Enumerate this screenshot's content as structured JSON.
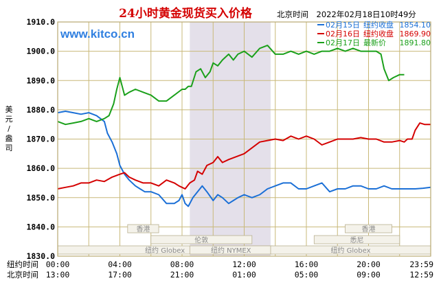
{
  "header": {
    "title": "24小时黄金现货买入价格",
    "timestamp": "北京时间　2022年02月18日10时49分",
    "watermark": "www.kitco.cn"
  },
  "y_axis_label": [
    "美",
    "元",
    "/",
    "盎",
    "司"
  ],
  "legend": [
    {
      "date": "02月15日",
      "label": "纽约收盘",
      "value": "1854.10",
      "color": "#1a6fd6"
    },
    {
      "date": "02月16日",
      "label": "纽约收盘",
      "value": "1869.90",
      "color": "#d40000"
    },
    {
      "date": "02月17日",
      "label": "最新价",
      "value": "1891.80",
      "color": "#1aa01a"
    }
  ],
  "sessions": [
    {
      "name": "香港",
      "row": 0
    },
    {
      "name": "香港",
      "row": 0
    },
    {
      "name": "伦敦",
      "row": 1
    },
    {
      "name": "悉尼",
      "row": 1
    },
    {
      "name": "纽约 Globex",
      "row": 2
    },
    {
      "name": "纽约 NYMEX",
      "row": 2
    },
    {
      "name": "纽约 Globex",
      "row": 2
    }
  ],
  "x_axis_rows": [
    {
      "label": "纽约时间",
      "ticks": [
        "00:00",
        "04:00",
        "08:00",
        "12:00",
        "16:00",
        "20:00",
        "23:59"
      ]
    },
    {
      "label": "北京时间",
      "ticks": [
        "13:00",
        "17:00",
        "21:00",
        "01:00",
        "05:00",
        "09:00",
        "12:59"
      ]
    }
  ],
  "chart_data": {
    "type": "line",
    "title": "24小时黄金现货买入价格",
    "ylabel": "美元/盎司",
    "xlabel": "纽约时间",
    "x_unit": "hours (New York time)",
    "xlim": [
      0,
      24
    ],
    "ylim": [
      1830,
      1910
    ],
    "yticks": [
      1830.0,
      1840.0,
      1850.0,
      1860.0,
      1870.0,
      1880.0,
      1890.0,
      1900.0,
      1910.0
    ],
    "grid": true,
    "highlight_band_hours": [
      8.5,
      13.7
    ],
    "series": [
      {
        "name": "02月15日",
        "color": "#1a6fd6",
        "x": [
          0,
          0.5,
          1,
          1.5,
          2,
          2.5,
          3,
          3.2,
          3.5,
          3.8,
          4,
          4.3,
          4.6,
          5,
          5.3,
          5.6,
          6,
          6.5,
          7,
          7.5,
          7.8,
          8,
          8.2,
          8.4,
          8.7,
          9,
          9.3,
          9.6,
          10,
          10.3,
          10.6,
          11,
          11.3,
          11.6,
          12,
          12.5,
          13,
          13.5,
          14,
          14.5,
          15,
          15.5,
          16,
          16.5,
          17,
          17.5,
          18,
          18.5,
          19,
          19.5,
          20,
          20.5,
          21,
          21.5,
          22,
          22.5,
          23,
          23.5,
          24
        ],
        "y": [
          1879,
          1879.5,
          1879,
          1878.5,
          1879,
          1878,
          1876,
          1872,
          1869,
          1865,
          1861,
          1858,
          1856,
          1854,
          1853,
          1852,
          1852,
          1851,
          1848,
          1848,
          1849,
          1851,
          1848,
          1847,
          1850,
          1852,
          1854,
          1852,
          1849,
          1851,
          1850,
          1848,
          1849,
          1850,
          1851,
          1850,
          1851,
          1853,
          1854,
          1855,
          1855,
          1853,
          1853,
          1854,
          1855,
          1852,
          1853,
          1853,
          1854,
          1854,
          1853,
          1853,
          1854,
          1853,
          1853,
          1853,
          1853,
          1853.2,
          1853.5
        ]
      },
      {
        "name": "02月16日",
        "color": "#d40000",
        "x": [
          0,
          0.5,
          1,
          1.5,
          2,
          2.5,
          3,
          3.5,
          4,
          4.3,
          4.6,
          5,
          5.5,
          6,
          6.5,
          7,
          7.5,
          7.8,
          8.2,
          8.5,
          8.8,
          9,
          9.3,
          9.6,
          10,
          10.3,
          10.6,
          11,
          11.5,
          12,
          12.5,
          13,
          13.5,
          14,
          14.5,
          15,
          15.5,
          16,
          16.5,
          17,
          17.5,
          18,
          18.5,
          19,
          19.5,
          20,
          20.5,
          21,
          21.5,
          22,
          22.3,
          22.5,
          22.8,
          23,
          23.3,
          23.6,
          24
        ],
        "y": [
          1853,
          1853.5,
          1854,
          1855,
          1855,
          1856,
          1855.5,
          1857,
          1858,
          1858.5,
          1857,
          1856,
          1855,
          1855,
          1854,
          1856,
          1855,
          1854,
          1853,
          1855,
          1856,
          1859,
          1858,
          1861,
          1862,
          1864,
          1862,
          1863,
          1864,
          1865,
          1867,
          1869,
          1869.5,
          1870,
          1869.5,
          1871,
          1870,
          1871,
          1870,
          1868,
          1869,
          1870,
          1870,
          1870,
          1870.5,
          1870,
          1870,
          1869,
          1869,
          1869.5,
          1869,
          1870,
          1870,
          1873,
          1875.5,
          1875,
          1875
        ]
      },
      {
        "name": "02月17日",
        "color": "#1aa01a",
        "x": [
          0,
          0.5,
          1,
          1.5,
          2,
          2.5,
          3,
          3.3,
          3.6,
          3.8,
          4,
          4.3,
          4.6,
          5,
          5.5,
          6,
          6.5,
          7,
          7.5,
          8,
          8.2,
          8.4,
          8.6,
          8.9,
          9.2,
          9.5,
          9.8,
          10,
          10.3,
          10.6,
          11,
          11.3,
          11.6,
          12,
          12.5,
          13,
          13.5,
          14,
          14.5,
          15,
          15.5,
          16,
          16.5,
          17,
          17.5,
          18,
          18.5,
          19,
          19.5,
          20,
          20.5,
          20.8,
          21,
          21.3,
          21.6,
          22,
          22.3
        ],
        "y": [
          1876,
          1875,
          1875.5,
          1876,
          1877,
          1876,
          1877,
          1878,
          1882,
          1887,
          1891,
          1885,
          1886,
          1887,
          1886,
          1885,
          1883,
          1883,
          1885,
          1887,
          1887,
          1888,
          1888,
          1893,
          1894,
          1891,
          1893,
          1896,
          1895,
          1897,
          1899,
          1897,
          1899,
          1900,
          1898,
          1901,
          1902,
          1899,
          1899,
          1900,
          1899,
          1900,
          1899,
          1900,
          1900,
          1901,
          1900,
          1901,
          1900,
          1900,
          1900,
          1899,
          1894,
          1890,
          1891,
          1892,
          1892
        ]
      }
    ]
  }
}
